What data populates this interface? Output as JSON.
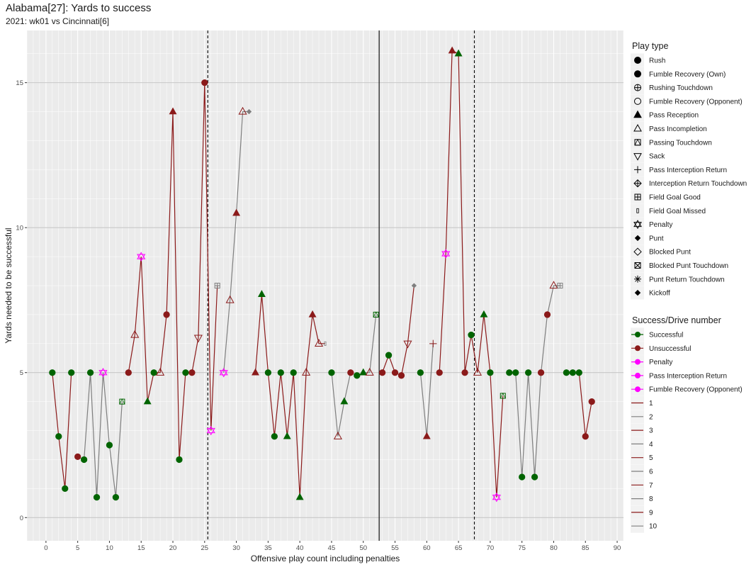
{
  "chart_data": {
    "type": "line",
    "title": "Alabama[27]: Yards to success",
    "subtitle": "2021: wk01 vs Cincinnati[6]",
    "xlabel": "Offensive play count including penalties",
    "ylabel": "Yards needed to be successful",
    "xlim": [
      -3,
      91
    ],
    "ylim": [
      -0.8,
      16.8
    ],
    "x_ticks": [
      0,
      5,
      10,
      15,
      20,
      25,
      30,
      35,
      40,
      45,
      50,
      55,
      60,
      65,
      70,
      75,
      80,
      85,
      90
    ],
    "y_ticks": [
      0,
      5,
      10,
      15
    ],
    "reference_lines": [
      {
        "x": 25.5,
        "style": "dashed"
      },
      {
        "x": 52.5,
        "style": "solid"
      },
      {
        "x": 67.5,
        "style": "dashed"
      }
    ],
    "colors": {
      "Successful": "#006400",
      "Unsuccessful": "#8b1a1a",
      "Penalty": "#ff00ff",
      "odd_drive": "#8b1a1a",
      "even_drive": "#7f7f7f",
      "panel_bg": "#ebebeb",
      "grid": "#ffffff"
    },
    "drives": [
      {
        "drive": 1,
        "points": [
          [
            1,
            5,
            "S",
            "rush"
          ],
          [
            2,
            2.8,
            "S",
            "rush"
          ],
          [
            3,
            1,
            "S",
            "rush"
          ],
          [
            4,
            5,
            "S",
            "rush"
          ]
        ]
      },
      {
        "drive": 2,
        "points": [
          [
            5,
            2.1,
            "U",
            "rush"
          ],
          [
            6,
            2,
            "S",
            "rush"
          ],
          [
            7,
            5,
            "S",
            "rush"
          ],
          [
            8,
            0.7,
            "S",
            "rush"
          ],
          [
            9,
            5,
            "P",
            "penalty"
          ],
          [
            10,
            2.5,
            "S",
            "rush"
          ],
          [
            11,
            0.7,
            "S",
            "rush"
          ],
          [
            12,
            4,
            "S",
            "pass_td"
          ]
        ]
      },
      {
        "drive": 3,
        "points": [
          [
            13,
            5,
            "U",
            "rush"
          ],
          [
            14,
            6.3,
            "U",
            "pass_inc"
          ],
          [
            15,
            9,
            "P",
            "penalty"
          ],
          [
            16,
            4,
            "S",
            "pass_rec"
          ],
          [
            17,
            5,
            "S",
            "rush"
          ],
          [
            18,
            5,
            "U",
            "pass_inc"
          ],
          [
            19,
            7,
            "U",
            "rush"
          ],
          [
            20,
            14,
            "U",
            "pass_rec"
          ],
          [
            21,
            2,
            "S",
            "rush"
          ],
          [
            22,
            5,
            "S",
            "rush"
          ],
          [
            23,
            5,
            "U",
            "rush"
          ],
          [
            24,
            6.2,
            "U",
            "sack"
          ],
          [
            25,
            15,
            "U",
            "rush"
          ],
          [
            26,
            3,
            "P",
            "penalty"
          ],
          [
            27,
            8,
            "U",
            "fg_good"
          ]
        ]
      },
      {
        "drive": 4,
        "points": [
          [
            28,
            5,
            "P",
            "penalty"
          ],
          [
            29,
            7.5,
            "U",
            "pass_inc"
          ],
          [
            30,
            10.5,
            "U",
            "pass_rec"
          ],
          [
            31,
            14,
            "U",
            "pass_inc"
          ],
          [
            32,
            14,
            "U",
            "punt"
          ]
        ]
      },
      {
        "drive": 5,
        "points": [
          [
            33,
            5,
            "U",
            "pass_rec"
          ],
          [
            34,
            7.7,
            "S",
            "pass_rec"
          ],
          [
            35,
            5,
            "S",
            "rush"
          ],
          [
            36,
            2.8,
            "S",
            "rush"
          ],
          [
            37,
            5,
            "S",
            "rush"
          ],
          [
            38,
            2.8,
            "S",
            "pass_rec"
          ],
          [
            39,
            5,
            "S",
            "rush"
          ],
          [
            40,
            0.7,
            "S",
            "pass_rec"
          ],
          [
            41,
            5,
            "U",
            "pass_inc"
          ],
          [
            42,
            7,
            "U",
            "pass_rec"
          ],
          [
            43,
            6,
            "U",
            "pass_inc"
          ],
          [
            44,
            6,
            "U",
            "fg_missed"
          ]
        ]
      },
      {
        "drive": 6,
        "points": [
          [
            45,
            5,
            "S",
            "rush"
          ],
          [
            46,
            2.8,
            "U",
            "pass_inc"
          ],
          [
            47,
            4,
            "S",
            "pass_rec"
          ],
          [
            48,
            5,
            "U",
            "rush"
          ],
          [
            49,
            4.9,
            "S",
            "rush"
          ],
          [
            50,
            5,
            "S",
            "pass_rec"
          ],
          [
            51,
            5,
            "U",
            "pass_inc"
          ],
          [
            52,
            7,
            "S",
            "pass_td"
          ]
        ]
      },
      {
        "drive": 7,
        "points": [
          [
            53,
            5,
            "U",
            "rush"
          ],
          [
            54,
            5.6,
            "S",
            "rush"
          ],
          [
            55,
            5,
            "U",
            "rush"
          ],
          [
            56,
            4.9,
            "U",
            "rush"
          ],
          [
            57,
            6,
            "U",
            "sack"
          ],
          [
            58,
            8,
            "U",
            "punt"
          ]
        ]
      },
      {
        "drive": 8,
        "points": [
          [
            59,
            5,
            "S",
            "rush"
          ],
          [
            60,
            2.8,
            "U",
            "pass_rec"
          ],
          [
            61,
            6,
            "U",
            "int_return"
          ]
        ]
      },
      {
        "drive": 9,
        "points": [
          [
            62,
            5,
            "U",
            "rush"
          ],
          [
            63,
            9.1,
            "P",
            "penalty"
          ],
          [
            64,
            16.1,
            "U",
            "pass_rec"
          ],
          [
            65,
            16,
            "S",
            "pass_rec"
          ],
          [
            66,
            5,
            "U",
            "rush"
          ],
          [
            67,
            6.3,
            "S",
            "rush"
          ],
          [
            68,
            5,
            "U",
            "pass_inc"
          ],
          [
            69,
            7,
            "S",
            "pass_rec"
          ],
          [
            70,
            5,
            "S",
            "rush"
          ],
          [
            71,
            0.7,
            "P",
            "penalty"
          ],
          [
            72,
            4.2,
            "S",
            "pass_td"
          ]
        ]
      },
      {
        "drive": 10,
        "points": [
          [
            73,
            5,
            "S",
            "rush"
          ],
          [
            74,
            5,
            "S",
            "rush"
          ],
          [
            75,
            1.4,
            "S",
            "rush"
          ],
          [
            76,
            5,
            "S",
            "rush"
          ],
          [
            77,
            1.4,
            "S",
            "rush"
          ],
          [
            78,
            5,
            "U",
            "rush"
          ],
          [
            79,
            7,
            "U",
            "rush"
          ],
          [
            80,
            8,
            "U",
            "pass_inc"
          ],
          [
            81,
            8,
            "U",
            "fg_good"
          ]
        ]
      },
      {
        "drive": 11,
        "points": [
          [
            82,
            5,
            "S",
            "rush"
          ],
          [
            83,
            5,
            "S",
            "rush"
          ],
          [
            84,
            5,
            "S",
            "rush"
          ],
          [
            85,
            2.8,
            "U",
            "rush"
          ],
          [
            86,
            4,
            "U",
            "rush"
          ]
        ]
      }
    ]
  },
  "legend": {
    "play_type_title": "Play type",
    "play_types": [
      {
        "label": "Rush",
        "icon": "filled-circle"
      },
      {
        "label": "Fumble Recovery (Own)",
        "icon": "filled-circle"
      },
      {
        "label": "Rushing Touchdown",
        "icon": "circle-plus"
      },
      {
        "label": "Fumble Recovery (Opponent)",
        "icon": "open-circle"
      },
      {
        "label": "Pass Reception",
        "icon": "filled-triangle"
      },
      {
        "label": "Pass Incompletion",
        "icon": "open-triangle"
      },
      {
        "label": "Passing Touchdown",
        "icon": "square-triangle"
      },
      {
        "label": "Sack",
        "icon": "open-triangle-down"
      },
      {
        "label": "Pass Interception Return",
        "icon": "plus"
      },
      {
        "label": "Interception Return Touchdown",
        "icon": "diamond-plus"
      },
      {
        "label": "Field Goal Good",
        "icon": "square-plus"
      },
      {
        "label": "Field Goal Missed",
        "icon": "thin-rect"
      },
      {
        "label": "Penalty",
        "icon": "star-of-david"
      },
      {
        "label": "Punt",
        "icon": "filled-diamond"
      },
      {
        "label": "Blocked Punt",
        "icon": "open-diamond"
      },
      {
        "label": "Blocked Punt Touchdown",
        "icon": "square-x"
      },
      {
        "label": "Punt Return Touchdown",
        "icon": "asterisk"
      },
      {
        "label": "Kickoff",
        "icon": "filled-diamond"
      }
    ],
    "success_title": "Success/Drive number",
    "success_items": [
      {
        "label": "Successful",
        "color": "#006400",
        "dot": true
      },
      {
        "label": "Unsuccessful",
        "color": "#8b1a1a",
        "dot": true
      },
      {
        "label": "Penalty",
        "color": "#ff00ff",
        "dot": true
      },
      {
        "label": "Pass Interception Return",
        "color": "#ff00ff",
        "dot": true
      },
      {
        "label": "Fumble Recovery (Opponent)",
        "color": "#ff00ff",
        "dot": true
      },
      {
        "label": "1",
        "color": "#8b1a1a",
        "dot": false
      },
      {
        "label": "2",
        "color": "#7f7f7f",
        "dot": false
      },
      {
        "label": "3",
        "color": "#8b1a1a",
        "dot": false
      },
      {
        "label": "4",
        "color": "#7f7f7f",
        "dot": false
      },
      {
        "label": "5",
        "color": "#8b1a1a",
        "dot": false
      },
      {
        "label": "6",
        "color": "#7f7f7f",
        "dot": false
      },
      {
        "label": "7",
        "color": "#8b1a1a",
        "dot": false
      },
      {
        "label": "8",
        "color": "#7f7f7f",
        "dot": false
      },
      {
        "label": "9",
        "color": "#8b1a1a",
        "dot": false
      },
      {
        "label": "10",
        "color": "#7f7f7f",
        "dot": false
      }
    ]
  }
}
